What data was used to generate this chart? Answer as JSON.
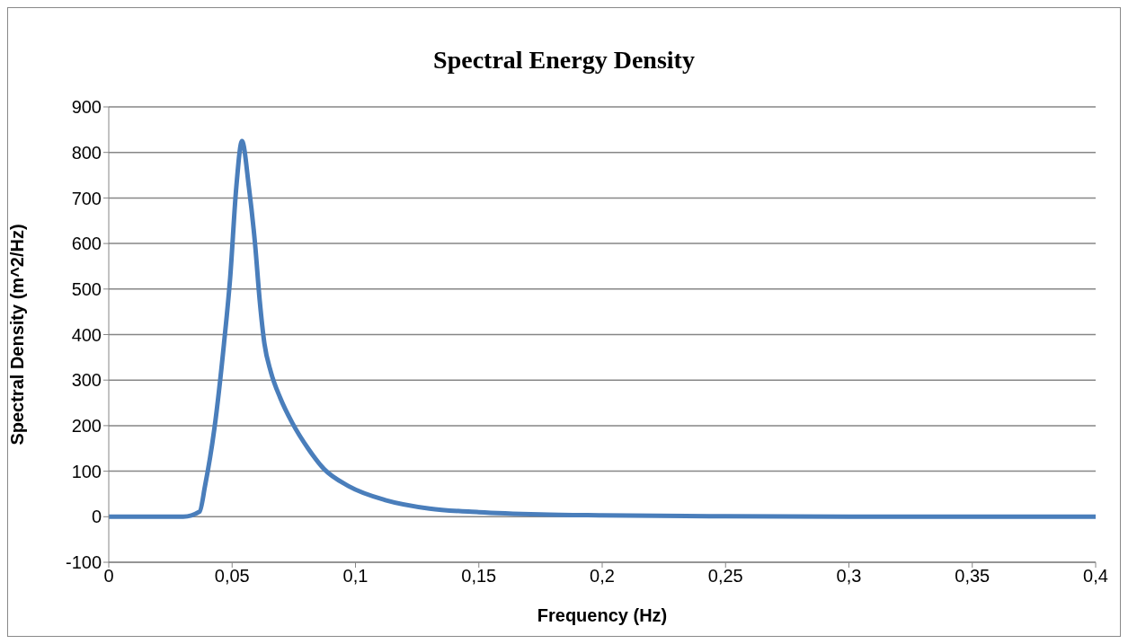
{
  "chart_data": {
    "type": "line",
    "title": "Spectral Energy Density",
    "xlabel": "Frequency  (Hz)",
    "ylabel": "Spectral Density (m^2/Hz)",
    "x": [
      0,
      0.0302,
      0.0368,
      0.039,
      0.0428,
      0.0467,
      0.0492,
      0.0517,
      0.054,
      0.0568,
      0.0593,
      0.0612,
      0.0631,
      0.0657,
      0.0695,
      0.0745,
      0.0809,
      0.0872,
      0.0973,
      0.1125,
      0.13,
      0.15,
      0.175,
      0.2,
      0.25,
      0.3,
      0.35,
      0.4
    ],
    "series": [
      {
        "color": "#4a7ebb",
        "values": [
          0,
          0,
          11,
          67,
          193,
          380,
          524,
          724,
          825,
          724,
          599,
          474,
          380,
          318,
          261,
          205,
          149,
          105,
          67,
          36,
          18,
          10,
          5,
          3,
          1,
          0,
          0,
          0
        ]
      }
    ],
    "xlim": [
      0,
      0.4
    ],
    "xticks": [
      0,
      {
        "value": 0.05,
        "label": "0,05"
      },
      {
        "value": 0.1,
        "label": "0,1"
      },
      {
        "value": 0.15,
        "label": "0,15"
      },
      {
        "value": 0.2,
        "label": "0,2"
      },
      {
        "value": 0.25,
        "label": "0,25"
      },
      {
        "value": 0.3,
        "label": "0,3"
      },
      {
        "value": 0.35,
        "label": "0,35"
      },
      {
        "value": 0.4,
        "label": "0,4"
      }
    ],
    "ylim": [
      -100,
      900
    ],
    "yticks": [
      -100,
      0,
      100,
      200,
      300,
      400,
      500,
      600,
      700,
      800,
      900
    ],
    "grid": "y",
    "legend": false,
    "marker": "none",
    "line_style": "solid"
  }
}
